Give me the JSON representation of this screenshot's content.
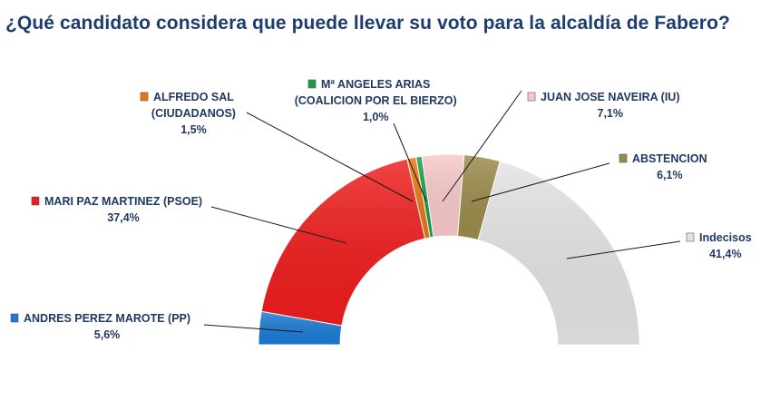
{
  "title": "¿Qué candidato considera que puede llevar su voto para la alcaldía de Fabero?",
  "chart_data": {
    "type": "pie",
    "subtype": "half-donut",
    "title": "¿Qué candidato considera que puede llevar su voto para la alcaldía de Fabero?",
    "slices": [
      {
        "name": "ANDRES PEREZ MAROTE (PP)",
        "value": 5.6,
        "label": "5,6%",
        "color": "#1b7ad4"
      },
      {
        "name": "MARI PAZ MARTINEZ (PSOE)",
        "value": 37.4,
        "label": "37,4%",
        "color": "#ee1c1c"
      },
      {
        "name_lines": [
          "ALFREDO SAL",
          "(CIUDADANOS)"
        ],
        "value": 1.5,
        "label": "1,5%",
        "color": "#e8750f"
      },
      {
        "name_lines": [
          "Mª ANGELES ARIAS",
          "(COALICION POR EL BIERZO)"
        ],
        "value": 1.0,
        "label": "1,0%",
        "color": "#1a9c4a"
      },
      {
        "name": "JUAN JOSE NAVEIRA (IU)",
        "value": 7.1,
        "label": "7,1%",
        "color": "#f7c8c8"
      },
      {
        "name": "ABSTENCION",
        "value": 6.1,
        "label": "6,1%",
        "color": "#9a8a4a"
      },
      {
        "name": "Indecisos",
        "value": 41.4,
        "label": "41,4%",
        "color": "#e3e3e3"
      }
    ]
  }
}
